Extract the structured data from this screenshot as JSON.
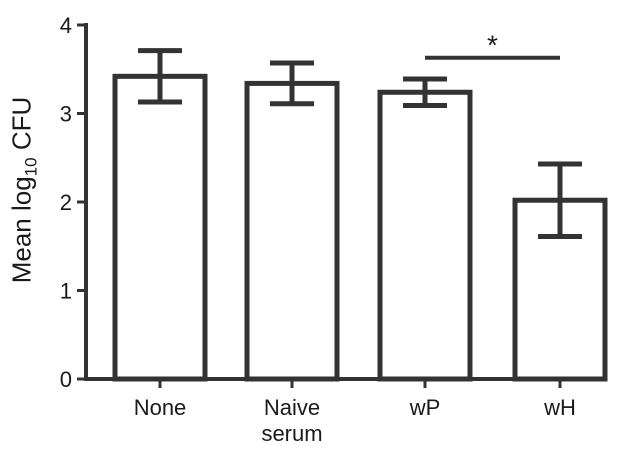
{
  "chart_data": {
    "type": "bar",
    "categories": [
      [
        "None"
      ],
      [
        "Naive",
        "serum"
      ],
      [
        "wP"
      ],
      [
        "wH"
      ]
    ],
    "values": [
      3.42,
      3.34,
      3.24,
      2.02
    ],
    "error_upper": [
      3.71,
      3.57,
      3.39,
      2.43
    ],
    "error_lower": [
      3.13,
      3.11,
      3.09,
      1.61
    ],
    "ylabel": {
      "prefix": "Mean log",
      "sub": "10",
      "suffix": " CFU"
    },
    "ylim": [
      0,
      4
    ],
    "yticks": [
      "0",
      "1",
      "2",
      "3",
      "4"
    ],
    "annotations": [
      {
        "text": "*",
        "from_category": 2,
        "to_category": 3,
        "y": 3.63
      }
    ],
    "grid": false,
    "bar_fill": "#ffffff",
    "bar_stroke": "#333333"
  }
}
